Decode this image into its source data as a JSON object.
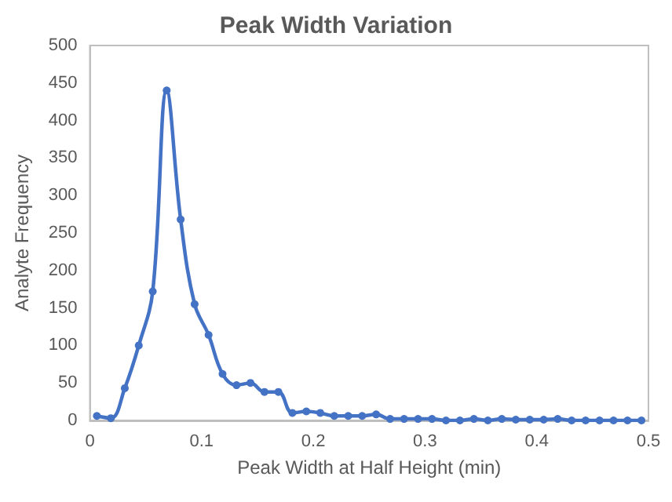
{
  "chart_data": {
    "type": "line",
    "title": "Peak Width Variation",
    "xlabel": "Peak Width at Half Height (min)",
    "ylabel": "Analyte Frequency",
    "x": [
      0.00625,
      0.01875,
      0.03125,
      0.04375,
      0.05625,
      0.06875,
      0.08125,
      0.09375,
      0.10625,
      0.11875,
      0.13125,
      0.14375,
      0.15625,
      0.16875,
      0.18125,
      0.19375,
      0.20625,
      0.21875,
      0.23125,
      0.24375,
      0.25625,
      0.26875,
      0.28125,
      0.29375,
      0.30625,
      0.31875,
      0.33125,
      0.34375,
      0.35625,
      0.36875,
      0.38125,
      0.39375,
      0.40625,
      0.41875,
      0.43125,
      0.44375,
      0.45625,
      0.46875,
      0.48125,
      0.49375
    ],
    "series": [
      {
        "color": "#4472c4",
        "values": [
          6,
          3,
          43,
          100,
          172,
          440,
          268,
          155,
          114,
          62,
          47,
          50,
          38,
          38,
          10,
          12,
          10,
          6,
          6,
          6,
          8,
          2,
          2,
          2,
          2,
          0,
          0,
          2,
          0,
          2,
          1,
          1,
          1,
          2,
          0,
          0,
          0,
          0,
          0,
          0
        ]
      }
    ],
    "xlim": [
      0,
      0.5
    ],
    "xticks": [
      0,
      0.1,
      0.2,
      0.3,
      0.4,
      0.5
    ],
    "ylim": [
      0,
      500
    ],
    "yticks": [
      0,
      50,
      100,
      150,
      200,
      250,
      300,
      350,
      400,
      450,
      500
    ],
    "marker": "circle",
    "line_style": "solid"
  }
}
